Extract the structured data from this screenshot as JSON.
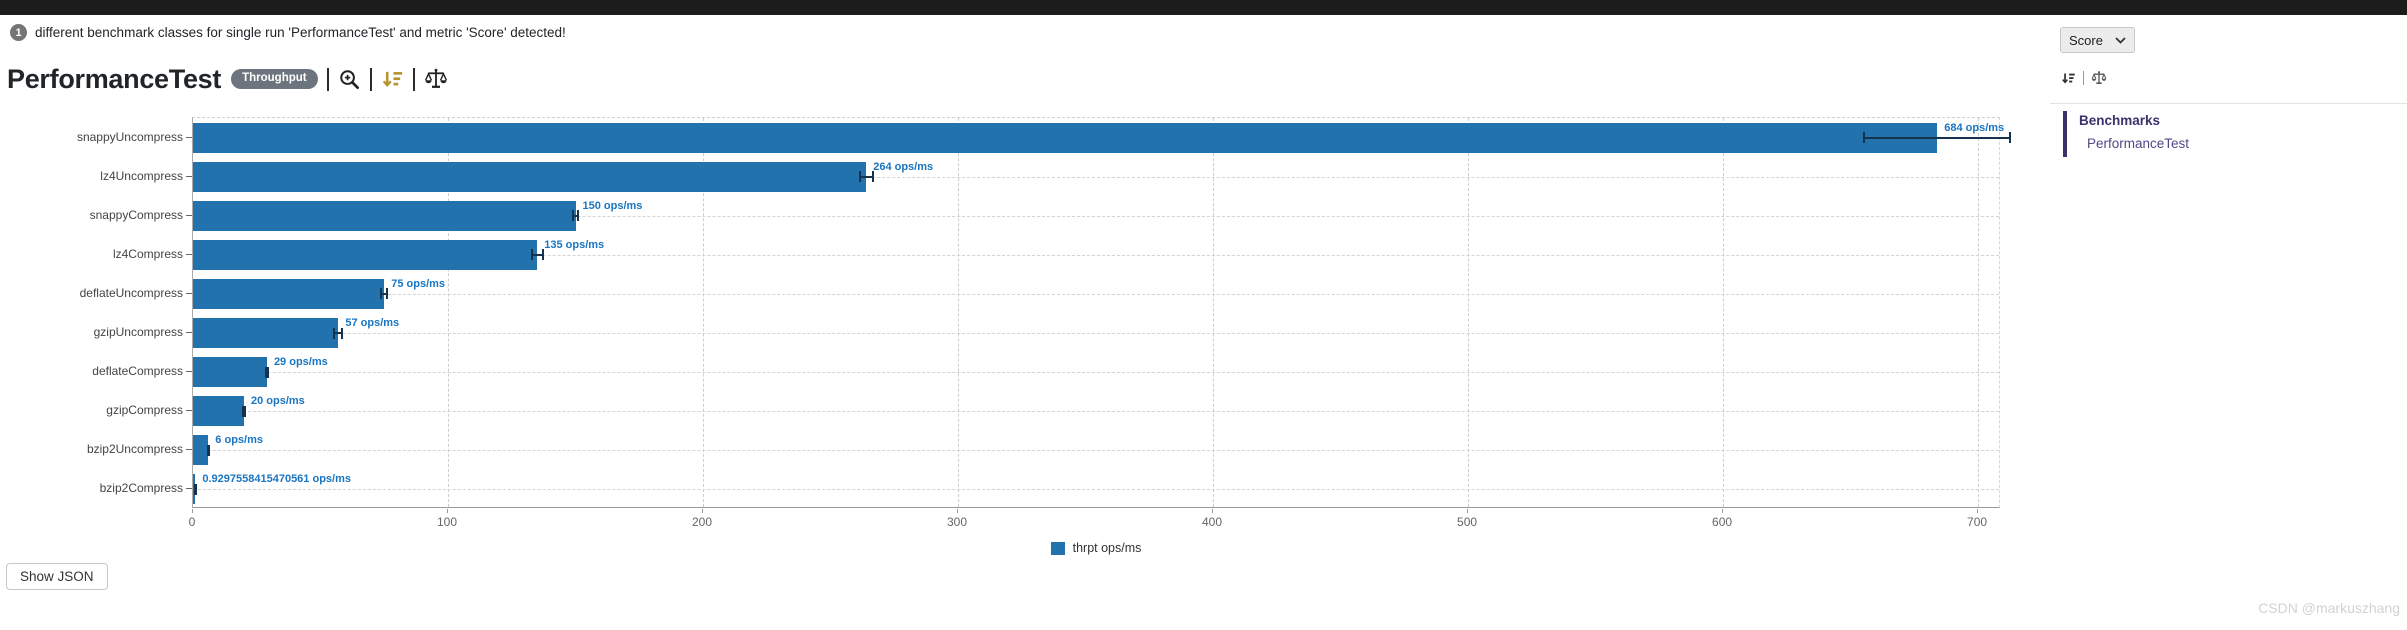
{
  "notice": {
    "count": "1",
    "text": "different benchmark classes for single run 'PerformanceTest' and metric 'Score' detected!"
  },
  "header": {
    "title": "PerformanceTest",
    "mode_badge": "Throughput",
    "metric_selected": "Score",
    "icons": [
      "zoom-in",
      "sort-order",
      "compare-scales"
    ]
  },
  "sidebar": {
    "panel_title": "Benchmarks",
    "items": [
      {
        "label": "PerformanceTest"
      }
    ],
    "accent_color": "#3a326b"
  },
  "chart_data": {
    "type": "bar",
    "orientation": "horizontal",
    "categories": [
      "snappyUncompress",
      "lz4Uncompress",
      "snappyCompress",
      "lz4Compress",
      "deflateUncompress",
      "gzipUncompress",
      "deflateCompress",
      "gzipCompress",
      "bzip2Uncompress",
      "bzip2Compress"
    ],
    "values": [
      684,
      264,
      150,
      135,
      75,
      57,
      29,
      20,
      6,
      0.9297558415470561
    ],
    "errors": [
      29,
      3,
      1.5,
      2.5,
      1.5,
      2,
      0.8,
      0.8,
      0.6,
      0.15
    ],
    "value_labels": [
      "684 ops/ms",
      "264 ops/ms",
      "150 ops/ms",
      "135 ops/ms",
      "75 ops/ms",
      "57 ops/ms",
      "29 ops/ms",
      "20 ops/ms",
      "6 ops/ms",
      "0.9297558415470561 ops/ms"
    ],
    "x_ticks": [
      0,
      100,
      200,
      300,
      400,
      500,
      600,
      700
    ],
    "xlim": [
      0,
      709
    ],
    "unit": "ops/ms",
    "legend_label": "thrpt ops/ms",
    "legend_position": "bottom-center",
    "grid": "dashed",
    "bar_color": "#2272ae",
    "error_color": "#17324c",
    "value_label_color": "#1a75c2"
  },
  "footer": {
    "show_json_label": "Show JSON"
  },
  "watermark": "CSDN @markuszhang"
}
